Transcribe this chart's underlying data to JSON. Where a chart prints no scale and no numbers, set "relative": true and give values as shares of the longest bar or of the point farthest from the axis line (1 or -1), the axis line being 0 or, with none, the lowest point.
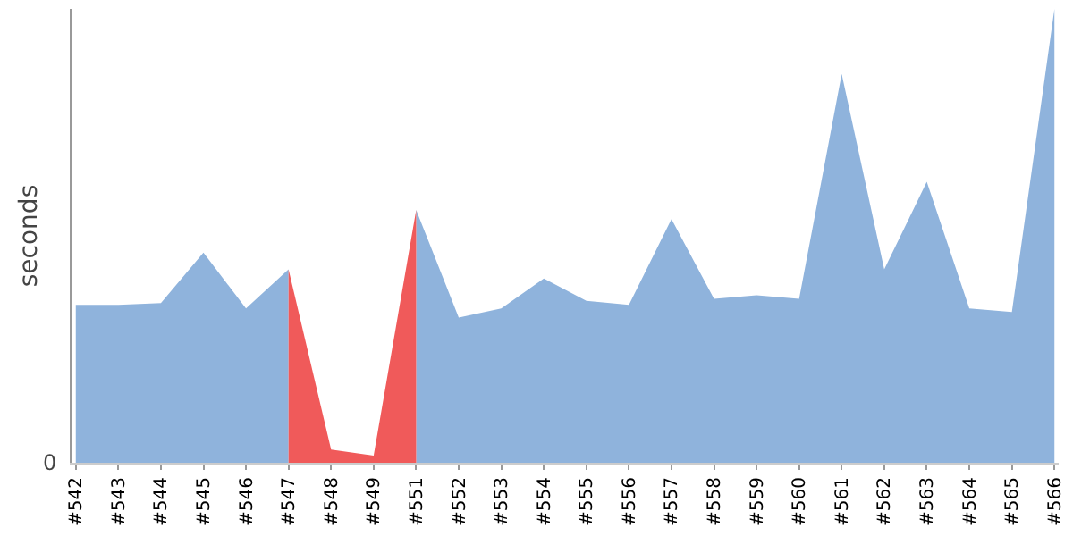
{
  "chart_data": {
    "type": "area",
    "relative": true,
    "ylabel": "seconds",
    "grid": false,
    "categories": [
      "#542",
      "#543",
      "#544",
      "#545",
      "#546",
      "#547",
      "#548",
      "#549",
      "#551",
      "#552",
      "#553",
      "#554",
      "#555",
      "#556",
      "#557",
      "#558",
      "#559",
      "#560",
      "#561",
      "#562",
      "#563",
      "#564",
      "#565",
      "#566"
    ],
    "annotations": [
      "0"
    ],
    "series": [
      {
        "color": "#8fb3dc",
        "values": [
          0.348,
          0.348,
          0.352,
          0.463,
          0.34,
          0.426,
          null,
          null,
          0.557,
          0.32,
          0.34,
          0.406,
          0.357,
          0.348,
          0.537,
          0.361,
          0.369,
          0.361,
          0.857,
          0.426,
          0.619,
          0.34,
          0.332,
          1
        ]
      },
      {
        "color": "#f05a5a",
        "values": [
          null,
          null,
          null,
          null,
          null,
          0.426,
          0.029,
          0.016,
          0.557,
          null,
          null,
          null,
          null,
          null,
          null,
          null,
          null,
          null,
          null,
          null,
          null,
          null,
          null,
          null
        ]
      }
    ]
  }
}
